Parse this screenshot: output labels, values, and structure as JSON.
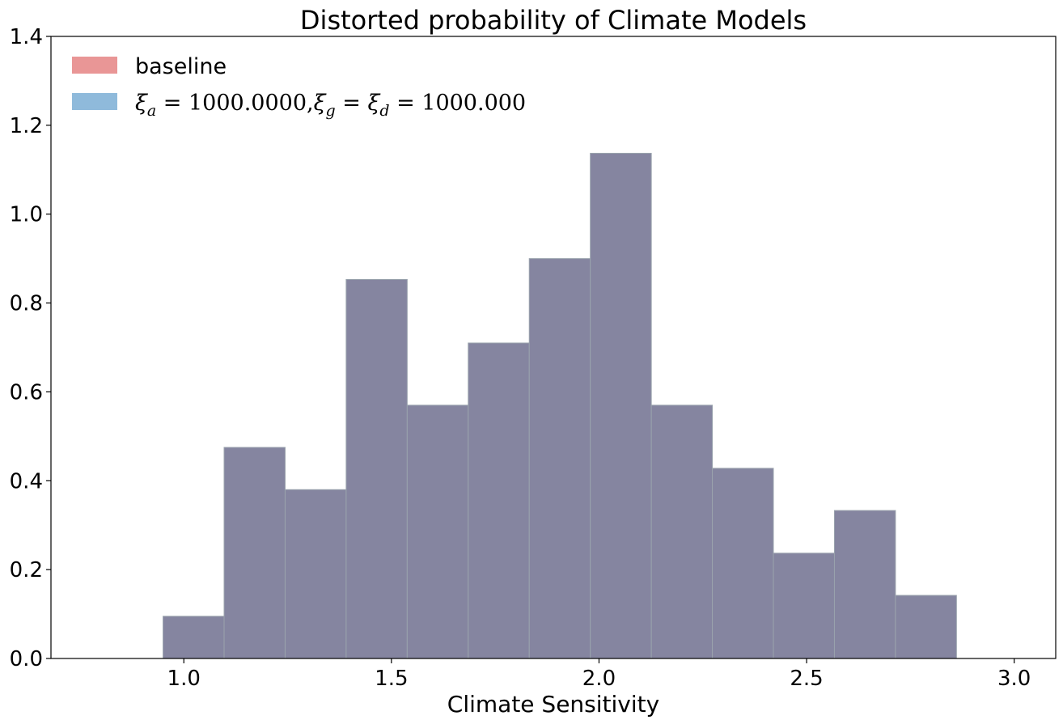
{
  "chart_data": {
    "type": "bar",
    "title": "Distorted probability of Climate Models",
    "xlabel": "Climate Sensitivity",
    "ylabel": "",
    "xlim": [
      0.68,
      3.1
    ],
    "ylim": [
      0,
      1.4
    ],
    "xticks": [
      "1.0",
      "1.5",
      "2.0",
      "2.5",
      "3.0"
    ],
    "yticks": [
      "0.0",
      "0.2",
      "0.4",
      "0.6",
      "0.8",
      "1.0",
      "1.2",
      "1.4"
    ],
    "bin_edges": [
      0.95,
      1.097,
      1.244,
      1.391,
      1.538,
      1.685,
      1.832,
      1.979,
      2.126,
      2.273,
      2.42,
      2.567,
      2.714,
      2.861
    ],
    "series": [
      {
        "name": "baseline",
        "color": "#e06666",
        "values": [
          0.095,
          0.475,
          0.38,
          0.853,
          0.57,
          0.71,
          0.9,
          1.137,
          0.57,
          0.428,
          0.237,
          0.333,
          0.142
        ]
      },
      {
        "name": "ξa = 1000.0000,ξg = ξd = 1000.000",
        "color": "#2a78b4",
        "values": [
          0.095,
          0.475,
          0.38,
          0.853,
          0.57,
          0.71,
          0.9,
          1.137,
          0.57,
          0.428,
          0.237,
          0.333,
          0.142
        ]
      }
    ],
    "overlap_color": "#8585a0",
    "legend_position": "top-left",
    "grid": false
  }
}
